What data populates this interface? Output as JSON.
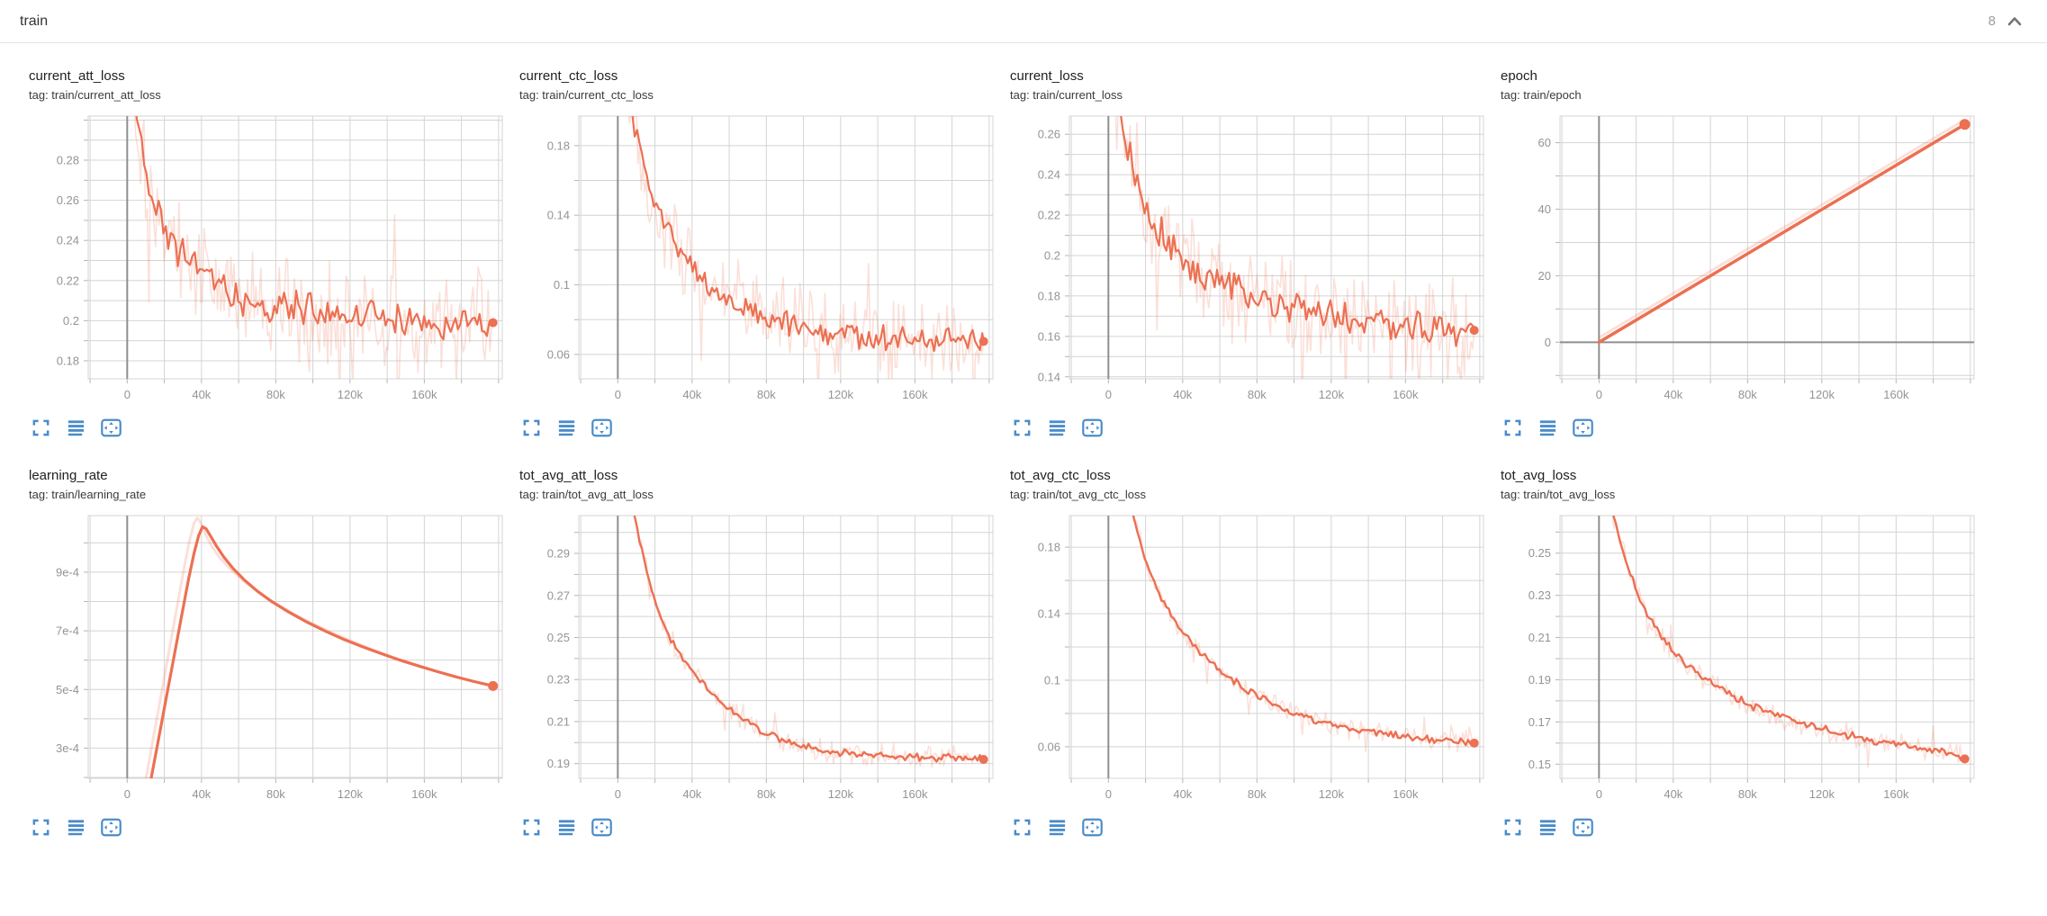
{
  "header": {
    "title": "train",
    "count": "8",
    "collapse_icon": "chevron-up-icon"
  },
  "colors": {
    "accent": "#ec7052",
    "accent_light_opacity": 0.22,
    "icon_blue": "#4a8cc9",
    "grid": "#d4d4d4",
    "axis_zero": "#8f8f8f",
    "tick_mark": "#b5b5b5",
    "tick_label": "#949494",
    "title_text": "#212121",
    "header_muted": "#9e9e9e",
    "chevron_gray": "#757575"
  },
  "x_axis": {
    "xlim": [
      -21000,
      202000
    ],
    "grid_step": 20000,
    "tick_values": [
      0,
      40000,
      80000,
      120000,
      160000
    ],
    "tick_labels": [
      "0",
      "40k",
      "80k",
      "120k",
      "160k"
    ]
  },
  "toolbar": {
    "buttons": [
      {
        "name": "expand-chart-button",
        "icon": "expand-icon"
      },
      {
        "name": "data-series-button",
        "icon": "runs-list-icon"
      },
      {
        "name": "fit-domain-button",
        "icon": "fit-domain-icon"
      }
    ]
  },
  "chart_data": [
    {
      "type": "line",
      "title": "current_att_loss",
      "tag": "tag: train/current_att_loss",
      "ylim": [
        0.171,
        0.302
      ],
      "ytick_values": [
        0.18,
        0.2,
        0.22,
        0.24,
        0.26,
        0.28
      ],
      "ytick_labels": [
        "0.18",
        "0.2",
        "0.22",
        "0.24",
        "0.26",
        "0.28"
      ],
      "ygrid_step": 0.01,
      "series": {
        "points": [
          [
            0,
            0.345
          ],
          [
            3000,
            0.318
          ],
          [
            6000,
            0.3
          ],
          [
            10000,
            0.274
          ],
          [
            15000,
            0.256
          ],
          [
            20000,
            0.2455
          ],
          [
            25000,
            0.2375
          ],
          [
            30000,
            0.2315
          ],
          [
            40000,
            0.2225
          ],
          [
            50000,
            0.216
          ],
          [
            60000,
            0.2115
          ],
          [
            80000,
            0.2065
          ],
          [
            100000,
            0.2035
          ],
          [
            120000,
            0.2015
          ],
          [
            140000,
            0.2003
          ],
          [
            160000,
            0.1995
          ],
          [
            197000,
            0.199
          ]
        ],
        "noise_main": 0.011,
        "noise_raw": 0.032,
        "end": [
          197000,
          0.199
        ],
        "main_width": 2.2,
        "dot_r": 5
      }
    },
    {
      "type": "line",
      "title": "current_ctc_loss",
      "tag": "tag: train/current_ctc_loss",
      "ylim": [
        0.046,
        0.197
      ],
      "ytick_values": [
        0.06,
        0.1,
        0.14,
        0.18
      ],
      "ytick_labels": [
        "0.06",
        "0.1",
        "0.14",
        "0.18"
      ],
      "ygrid_step": 0.02,
      "series": {
        "points": [
          [
            0,
            0.25
          ],
          [
            3000,
            0.227
          ],
          [
            6000,
            0.207
          ],
          [
            10000,
            0.186
          ],
          [
            15000,
            0.164
          ],
          [
            20000,
            0.148
          ],
          [
            25000,
            0.1355
          ],
          [
            30000,
            0.125
          ],
          [
            40000,
            0.1095
          ],
          [
            50000,
            0.0985
          ],
          [
            60000,
            0.0905
          ],
          [
            80000,
            0.0815
          ],
          [
            100000,
            0.0755
          ],
          [
            120000,
            0.0715
          ],
          [
            140000,
            0.0695
          ],
          [
            160000,
            0.0682
          ],
          [
            197000,
            0.0672
          ]
        ],
        "noise_main": 0.0085,
        "noise_raw": 0.026,
        "end": [
          197000,
          0.0675
        ],
        "main_width": 2.2,
        "dot_r": 5
      }
    },
    {
      "type": "line",
      "title": "current_loss",
      "tag": "tag: train/current_loss",
      "ylim": [
        0.139,
        0.269
      ],
      "ytick_values": [
        0.14,
        0.16,
        0.18,
        0.2,
        0.22,
        0.24,
        0.26
      ],
      "ytick_labels": [
        "0.14",
        "0.16",
        "0.18",
        "0.2",
        "0.22",
        "0.24",
        "0.26"
      ],
      "ygrid_step": 0.01,
      "series": {
        "points": [
          [
            0,
            0.3
          ],
          [
            3000,
            0.286
          ],
          [
            6000,
            0.272
          ],
          [
            10000,
            0.2535
          ],
          [
            15000,
            0.236
          ],
          [
            20000,
            0.2235
          ],
          [
            25000,
            0.2145
          ],
          [
            30000,
            0.2075
          ],
          [
            40000,
            0.198
          ],
          [
            50000,
            0.1915
          ],
          [
            60000,
            0.1865
          ],
          [
            80000,
            0.1795
          ],
          [
            100000,
            0.1745
          ],
          [
            120000,
            0.1705
          ],
          [
            140000,
            0.1675
          ],
          [
            160000,
            0.1648
          ],
          [
            197000,
            0.1628
          ]
        ],
        "noise_main": 0.0105,
        "noise_raw": 0.03,
        "end": [
          197000,
          0.163
        ],
        "main_width": 2.2,
        "dot_r": 5
      }
    },
    {
      "type": "line",
      "title": "epoch",
      "tag": "tag: train/epoch",
      "ylim": [
        -11,
        68
      ],
      "ytick_values": [
        0,
        20,
        40,
        60
      ],
      "ytick_labels": [
        "0",
        "20",
        "40",
        "60"
      ],
      "ygrid_step": 10,
      "series": {
        "points": [
          [
            0,
            0
          ],
          [
            197000,
            65.5
          ]
        ],
        "noise_main": 0,
        "noise_raw": 0,
        "raw_offset_y": 1.4,
        "end": [
          197000,
          65.5
        ],
        "main_width": 3.5,
        "dot_r": 6
      }
    },
    {
      "type": "line",
      "title": "learning_rate",
      "tag": "tag: train/learning_rate",
      "ylim": [
        0.000197,
        0.001093
      ],
      "ytick_values": [
        0.0003,
        0.0005,
        0.0007,
        0.0009
      ],
      "ytick_labels": [
        "3e-4",
        "5e-4",
        "7e-4",
        "9e-4"
      ],
      "ygrid_step": 0.0001,
      "series": {
        "points": [
          [
            9500,
            0.0001
          ],
          [
            13000,
            0.0002
          ],
          [
            17000,
            0.000335
          ],
          [
            21000,
            0.00047
          ],
          [
            25000,
            0.000605
          ],
          [
            29000,
            0.00074
          ],
          [
            33000,
            0.000875
          ],
          [
            36000,
            0.000965
          ],
          [
            38500,
            0.001025
          ],
          [
            40500,
            0.001055
          ],
          [
            42500,
            0.001048
          ],
          [
            45000,
            0.001022
          ],
          [
            48000,
            0.00099
          ],
          [
            52000,
            0.000952
          ],
          [
            57000,
            0.000913
          ],
          [
            63000,
            0.000874
          ],
          [
            70000,
            0.000836
          ],
          [
            78000,
            0.000799
          ],
          [
            87000,
            0.000764
          ],
          [
            97000,
            0.000729
          ],
          [
            107000,
            0.000698
          ],
          [
            117000,
            0.00067
          ],
          [
            127000,
            0.000645
          ],
          [
            137000,
            0.000622
          ],
          [
            147000,
            0.0006
          ],
          [
            157000,
            0.00058
          ],
          [
            167000,
            0.000561
          ],
          [
            177000,
            0.000543
          ],
          [
            187000,
            0.000527
          ],
          [
            197000,
            0.000512
          ]
        ],
        "raw_points": [
          [
            7000,
            0.0001
          ],
          [
            10500,
            0.00021
          ],
          [
            14500,
            0.00035
          ],
          [
            18500,
            0.00049
          ],
          [
            22500,
            0.00063
          ],
          [
            26500,
            0.00077
          ],
          [
            30500,
            0.00091
          ],
          [
            33500,
            0.001005
          ],
          [
            36000,
            0.001068
          ],
          [
            37800,
            0.001085
          ],
          [
            39500,
            0.00107
          ],
          [
            42000,
            0.00103
          ],
          [
            45500,
            0.000988
          ],
          [
            50000,
            0.000948
          ],
          [
            56000,
            0.000908
          ],
          [
            63000,
            0.000868
          ],
          [
            71000,
            0.00083
          ],
          [
            80000,
            0.000793
          ],
          [
            90000,
            0.000757
          ],
          [
            100000,
            0.000724
          ],
          [
            111000,
            0.000692
          ],
          [
            122000,
            0.000662
          ],
          [
            133000,
            0.000634
          ],
          [
            144000,
            0.000608
          ],
          [
            155000,
            0.000585
          ],
          [
            166000,
            0.000563
          ],
          [
            177000,
            0.000543
          ],
          [
            187000,
            0.000526
          ],
          [
            197000,
            0.000511
          ]
        ],
        "noise_main": 0,
        "noise_raw": 0,
        "end": [
          197000,
          0.000512
        ],
        "main_width": 3.2,
        "dot_r": 5.5
      }
    },
    {
      "type": "line",
      "title": "tot_avg_att_loss",
      "tag": "tag: train/tot_avg_att_loss",
      "ylim": [
        0.183,
        0.308
      ],
      "ytick_values": [
        0.19,
        0.21,
        0.23,
        0.25,
        0.27,
        0.29
      ],
      "ytick_labels": [
        "0.19",
        "0.21",
        "0.23",
        "0.25",
        "0.27",
        "0.29"
      ],
      "ygrid_step": 0.01,
      "series": {
        "points": [
          [
            0,
            0.35
          ],
          [
            4000,
            0.332
          ],
          [
            8000,
            0.313
          ],
          [
            12000,
            0.295
          ],
          [
            16000,
            0.28
          ],
          [
            20000,
            0.2675
          ],
          [
            24000,
            0.2575
          ],
          [
            28000,
            0.2495
          ],
          [
            32000,
            0.2435
          ],
          [
            36000,
            0.2385
          ],
          [
            40000,
            0.2343
          ],
          [
            46000,
            0.2285
          ],
          [
            52000,
            0.2228
          ],
          [
            58000,
            0.2178
          ],
          [
            65000,
            0.2128
          ],
          [
            72000,
            0.2086
          ],
          [
            80000,
            0.2044
          ],
          [
            90000,
            0.2006
          ],
          [
            100000,
            0.1982
          ],
          [
            110000,
            0.1965
          ],
          [
            120000,
            0.1953
          ],
          [
            135000,
            0.1942
          ],
          [
            150000,
            0.1936
          ],
          [
            165000,
            0.193
          ],
          [
            180000,
            0.1926
          ],
          [
            197000,
            0.1921
          ]
        ],
        "noise_main": 0.0022,
        "noise_raw": 0.0062,
        "end": [
          197000,
          0.192
        ],
        "main_width": 2.4,
        "dot_r": 5
      }
    },
    {
      "type": "line",
      "title": "tot_avg_ctc_loss",
      "tag": "tag: train/tot_avg_ctc_loss",
      "ylim": [
        0.041,
        0.199
      ],
      "ytick_values": [
        0.06,
        0.1,
        0.14,
        0.18
      ],
      "ytick_labels": [
        "0.06",
        "0.1",
        "0.14",
        "0.18"
      ],
      "ygrid_step": 0.02,
      "series": {
        "points": [
          [
            0,
            0.27
          ],
          [
            4000,
            0.247
          ],
          [
            8000,
            0.2245
          ],
          [
            12000,
            0.2045
          ],
          [
            16000,
            0.187
          ],
          [
            20000,
            0.172
          ],
          [
            24000,
            0.16
          ],
          [
            28000,
            0.1505
          ],
          [
            32000,
            0.1425
          ],
          [
            36000,
            0.1355
          ],
          [
            40000,
            0.1295
          ],
          [
            46000,
            0.1213
          ],
          [
            52000,
            0.1142
          ],
          [
            58000,
            0.108
          ],
          [
            65000,
            0.1018
          ],
          [
            72000,
            0.0964
          ],
          [
            80000,
            0.091
          ],
          [
            90000,
            0.0853
          ],
          [
            100000,
            0.0805
          ],
          [
            110000,
            0.0766
          ],
          [
            120000,
            0.0734
          ],
          [
            130000,
            0.0709
          ],
          [
            140000,
            0.0689
          ],
          [
            150000,
            0.0673
          ],
          [
            160000,
            0.066
          ],
          [
            170000,
            0.0649
          ],
          [
            180000,
            0.064
          ],
          [
            197000,
            0.0625
          ]
        ],
        "noise_main": 0.0026,
        "noise_raw": 0.0072,
        "end": [
          197000,
          0.0622
        ],
        "main_width": 2.4,
        "dot_r": 5
      }
    },
    {
      "type": "line",
      "title": "tot_avg_loss",
      "tag": "tag: train/tot_avg_loss",
      "ylim": [
        0.1433,
        0.2678
      ],
      "ytick_values": [
        0.15,
        0.17,
        0.19,
        0.21,
        0.23,
        0.25
      ],
      "ytick_labels": [
        "0.15",
        "0.17",
        "0.19",
        "0.21",
        "0.23",
        "0.25"
      ],
      "ygrid_step": 0.01,
      "series": {
        "points": [
          [
            0,
            0.295
          ],
          [
            4000,
            0.281
          ],
          [
            8000,
            0.2665
          ],
          [
            12000,
            0.2535
          ],
          [
            16000,
            0.2425
          ],
          [
            20000,
            0.2325
          ],
          [
            24000,
            0.2245
          ],
          [
            28000,
            0.218
          ],
          [
            32000,
            0.2125
          ],
          [
            36000,
            0.2078
          ],
          [
            40000,
            0.2038
          ],
          [
            46000,
            0.1985
          ],
          [
            52000,
            0.1938
          ],
          [
            58000,
            0.1898
          ],
          [
            65000,
            0.1858
          ],
          [
            72000,
            0.1823
          ],
          [
            80000,
            0.1788
          ],
          [
            90000,
            0.175
          ],
          [
            100000,
            0.1718
          ],
          [
            110000,
            0.169
          ],
          [
            120000,
            0.1665
          ],
          [
            130000,
            0.1643
          ],
          [
            140000,
            0.1624
          ],
          [
            150000,
            0.1608
          ],
          [
            160000,
            0.1594
          ],
          [
            170000,
            0.1582
          ],
          [
            180000,
            0.1572
          ],
          [
            197000,
            0.1528
          ]
        ],
        "noise_main": 0.0023,
        "noise_raw": 0.0062,
        "end": [
          197000,
          0.1525
        ],
        "main_width": 2.4,
        "dot_r": 5
      }
    }
  ]
}
